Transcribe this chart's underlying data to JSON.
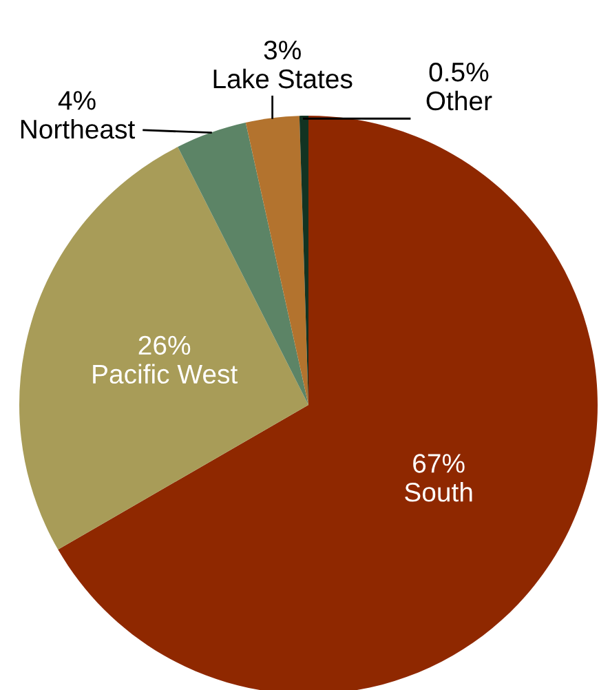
{
  "chart_data": {
    "type": "pie",
    "categories": [
      "South",
      "Pacific West",
      "Northeast",
      "Lake States",
      "Other"
    ],
    "values": [
      67,
      26,
      4,
      3,
      0.5
    ],
    "value_labels": [
      "67%",
      "26%",
      "4%",
      "3%",
      "0.5%"
    ],
    "colors": [
      "#8f2800",
      "#a89c58",
      "#5c8466",
      "#b3732e",
      "#123322"
    ]
  }
}
